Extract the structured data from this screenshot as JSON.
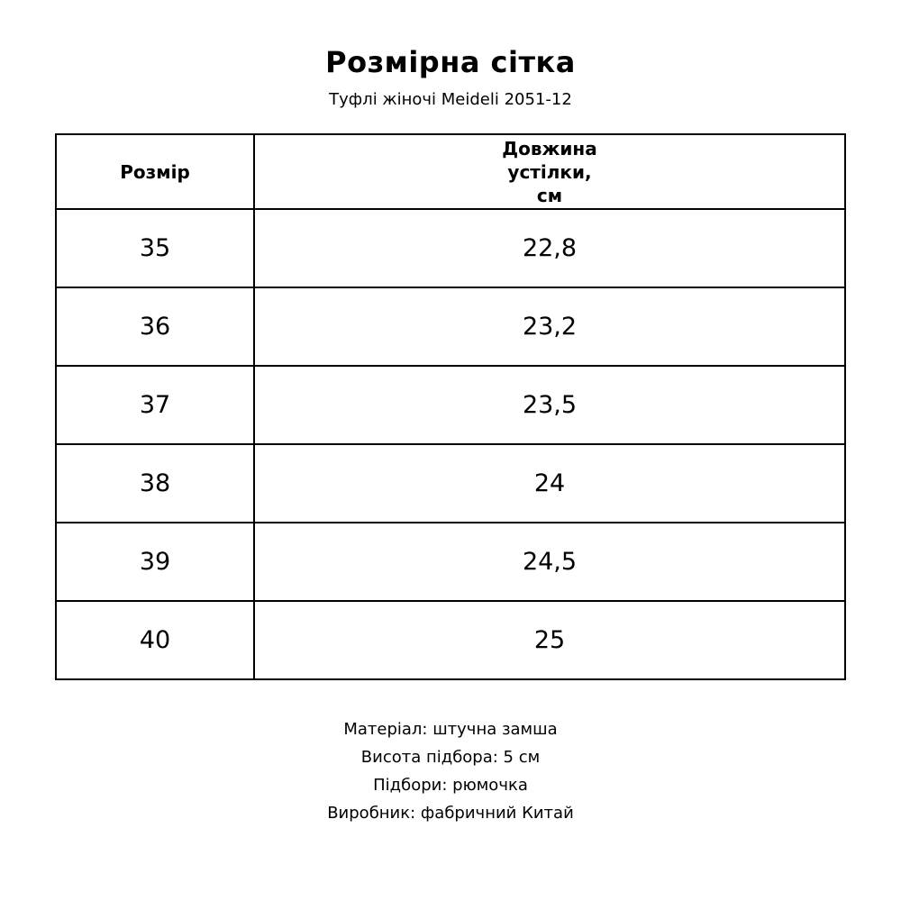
{
  "page": {
    "title": "Розмірна сітка",
    "subtitle": "Туфлі жіночі Meideli 2051-12"
  },
  "table": {
    "headers": {
      "size": "Розмір",
      "insole": "Довжина\nустілки,\nсм"
    },
    "rows": [
      {
        "size": "35",
        "insole_cm": "22,8"
      },
      {
        "size": "36",
        "insole_cm": "23,2"
      },
      {
        "size": "37",
        "insole_cm": "23,5"
      },
      {
        "size": "38",
        "insole_cm": "24"
      },
      {
        "size": "39",
        "insole_cm": "24,5"
      },
      {
        "size": "40",
        "insole_cm": "25"
      }
    ]
  },
  "details": {
    "lines": [
      "Матеріал: штучна замша",
      "Висота підбора: 5 см",
      "Підбори: рюмочка",
      "Виробник: фабричний Китай"
    ]
  },
  "colors": {
    "text": "#000000",
    "border": "#000000",
    "background": "#ffffff"
  }
}
